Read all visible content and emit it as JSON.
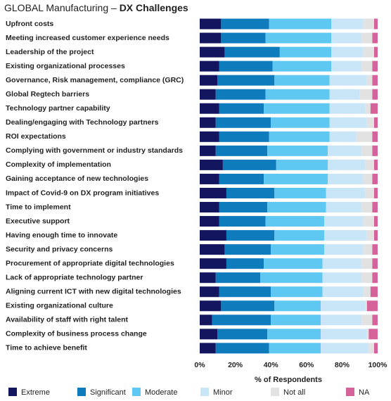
{
  "chart_data": {
    "type": "stacked-bar-horizontal",
    "title": "GLOBAL Manufacturing –",
    "title_emphasis": "DX Challenges",
    "x_label": "% of Respondents",
    "xlim": [
      0,
      100
    ],
    "xticks": [
      {
        "value": 0,
        "label": "0%"
      },
      {
        "value": 20,
        "label": "20%"
      },
      {
        "value": 40,
        "label": "40%"
      },
      {
        "value": 60,
        "label": "60%"
      },
      {
        "value": 80,
        "label": "80%"
      },
      {
        "value": 100,
        "label": "100%"
      }
    ],
    "legend": "bottom",
    "categories": [
      "Upfront costs",
      "Meeting increased customer experience needs",
      "Leadership of the project",
      "Existing organizational processes",
      "Governance, Risk management, compliance (GRC)",
      "Global Regtech barriers",
      "Technology partner capability",
      "Dealing/engaging with Technology partners",
      "ROI expectations",
      "Complying with government or industry standards",
      "Complexity of implementation",
      "Gaining acceptance of new technologies",
      "Impact of Covid-9 on DX program initiatives",
      "Time to implement",
      "Executive support",
      "Having enough time to innovate",
      "Security and privacy concerns",
      "Procurement of appropriate digital technologies",
      "Lack of appropriate technology partner",
      "Aligning current ICT with new digital technologies",
      "Existing organizational culture",
      "Availability of staff with right talent",
      "Complexity of business process change",
      "Time to achieve benefit"
    ],
    "series": [
      {
        "name": "Extreme",
        "color": "#13155e",
        "values": [
          12,
          12,
          14,
          11,
          10,
          9,
          11,
          9,
          11,
          9,
          13,
          11,
          15,
          11,
          11,
          15,
          14,
          15,
          9,
          11,
          12,
          7,
          10,
          9
        ]
      },
      {
        "name": "Significant",
        "color": "#0e7bbd",
        "values": [
          27,
          25,
          31,
          30,
          32,
          28,
          25,
          31,
          28,
          29,
          30,
          25,
          27,
          27,
          26,
          27,
          26,
          21,
          25,
          29,
          30,
          33,
          28,
          30
        ]
      },
      {
        "name": "Moderate",
        "color": "#5ec8f2",
        "values": [
          35,
          37,
          29,
          33,
          31,
          36,
          37,
          33,
          34,
          34,
          29,
          36,
          29,
          33,
          33,
          28,
          30,
          33,
          35,
          29,
          26,
          28,
          30,
          29
        ]
      },
      {
        "name": "Minor",
        "color": "#c9e6f8",
        "values": [
          18,
          17,
          18,
          17,
          21,
          17,
          20,
          21,
          15,
          19,
          21,
          20,
          22,
          20,
          22,
          24,
          22,
          22,
          22,
          23,
          25,
          23,
          26,
          27
        ]
      },
      {
        "name": "Not all",
        "color": "#e2e2e2",
        "values": [
          6,
          6,
          6,
          6,
          3,
          7,
          3,
          4,
          9,
          6,
          5,
          5,
          5,
          6,
          6,
          4,
          5,
          6,
          6,
          4,
          1,
          6,
          1,
          3
        ]
      },
      {
        "name": "NA",
        "color": "#d5639a",
        "values": [
          2,
          3,
          2,
          3,
          3,
          3,
          4,
          2,
          3,
          3,
          2,
          3,
          2,
          3,
          2,
          2,
          3,
          3,
          3,
          4,
          6,
          3,
          5,
          2
        ]
      }
    ]
  }
}
